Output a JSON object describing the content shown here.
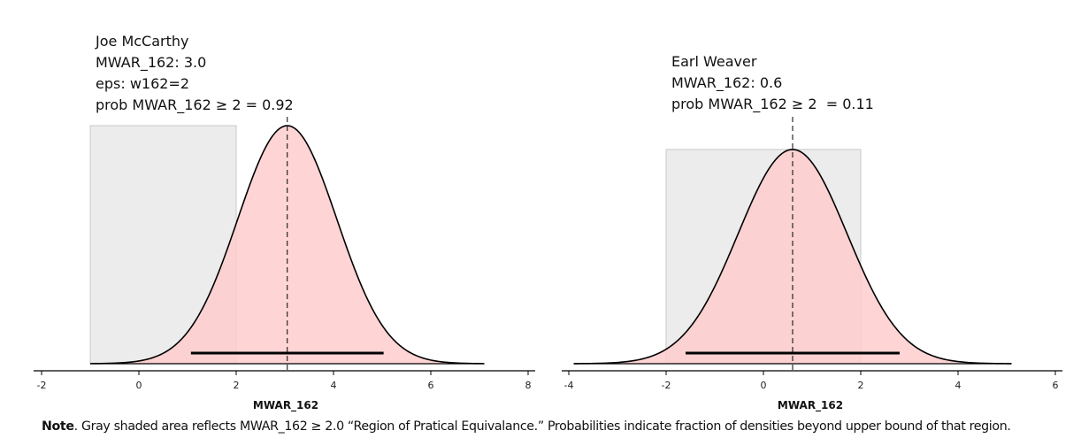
{
  "chart_data": [
    {
      "type": "area",
      "title": "Joe McCarthy",
      "annotations": [
        "Joe McCarthy",
        "MWAR_162: 3.0",
        "eps: w162=2",
        "prob MWAR_162 ≥ 2 = 0.92"
      ],
      "xlabel": "MWAR_162",
      "ylabel": "",
      "xlim": [
        -2,
        8
      ],
      "xticks": [
        -2,
        0,
        2,
        4,
        6,
        8
      ],
      "tick_labels": [
        "-2",
        "0",
        "2",
        "4",
        "6",
        "8"
      ],
      "grid": false,
      "density": {
        "distribution": "normal",
        "mean": 3.05,
        "sd": 1.02,
        "x_range": [
          -1.0,
          7.1
        ]
      },
      "rope": {
        "lower": -1.0,
        "upper": 2.0,
        "color": "#ececec"
      },
      "hdi": [
        1.07,
        5.03
      ],
      "mean_line": 3.05,
      "prob_above_rope": 0.92,
      "relative_peak_height": 1.0
    },
    {
      "type": "area",
      "title": "Earl Weaver",
      "annotations": [
        "Earl Weaver",
        "MWAR_162: 0.6",
        "prob MWAR_162 ≥ 2  = 0.11"
      ],
      "xlabel": "MWAR_162",
      "ylabel": "",
      "xlim": [
        -4,
        6
      ],
      "xticks": [
        -4,
        -2,
        0,
        2,
        4,
        6
      ],
      "tick_labels": [
        "-4",
        "-2",
        "0",
        "2",
        "4",
        "6"
      ],
      "grid": false,
      "density": {
        "distribution": "normal",
        "mean": 0.6,
        "sd": 1.12,
        "x_range": [
          -3.9,
          5.1
        ]
      },
      "rope": {
        "lower": -2.0,
        "upper": 2.0,
        "color": "#ececec"
      },
      "hdi": [
        -1.6,
        2.8
      ],
      "mean_line": 0.6,
      "prob_above_rope": 0.11,
      "relative_peak_height": 0.9
    }
  ],
  "colors": {
    "density_fill": "#ffcccc",
    "rope_fill": "#ececec",
    "rope_stroke": "#c8c8c8",
    "curve": "#000000",
    "hdi": "#000000",
    "axis": "#000000"
  },
  "note": {
    "bold": "Note",
    "text": ". Gray shaded area reflects MWAR_162 ≥ 2.0 “Region of Pratical Equivalance.” Probabilities indicate fraction of densities beyond upper bound of that region."
  }
}
